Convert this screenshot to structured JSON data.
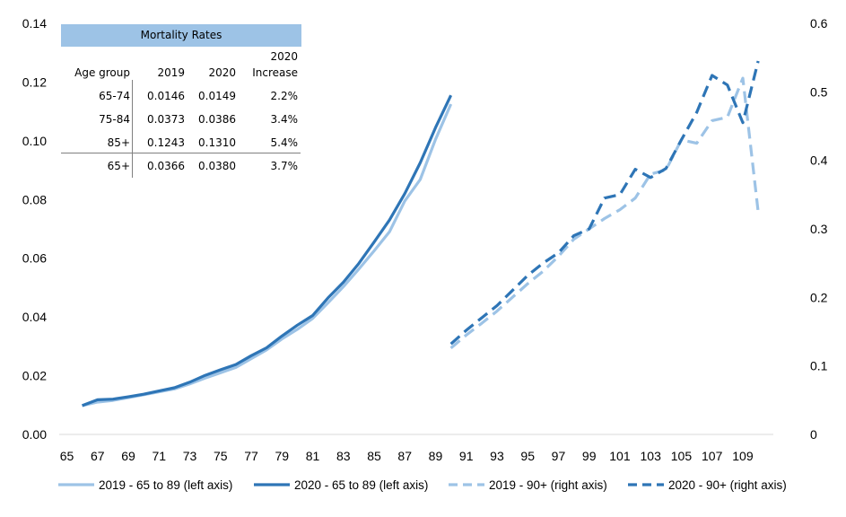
{
  "chart_data": {
    "type": "line",
    "x_ticks": [
      65,
      67,
      69,
      71,
      73,
      75,
      77,
      79,
      81,
      83,
      85,
      87,
      89,
      91,
      93,
      95,
      97,
      99,
      101,
      103,
      105,
      107,
      109
    ],
    "xlim": [
      65,
      111
    ],
    "y_left": {
      "ylim": [
        0,
        0.14
      ],
      "ticks": [
        "0.00",
        "0.02",
        "0.04",
        "0.06",
        "0.08",
        "0.10",
        "0.12",
        "0.14"
      ]
    },
    "y_right": {
      "ylim": [
        0,
        0.6
      ],
      "ticks": [
        "0",
        "0.1",
        "0.2",
        "0.3",
        "0.4",
        "0.5",
        "0.6"
      ]
    },
    "series": [
      {
        "name": "2019 - 65 to 89 (left axis)",
        "axis": "left",
        "color": "#9dc3e6",
        "dash": false,
        "x": [
          66,
          67,
          68,
          69,
          70,
          71,
          72,
          73,
          74,
          75,
          76,
          77,
          78,
          79,
          80,
          81,
          82,
          83,
          84,
          85,
          86,
          87,
          88,
          89,
          90
        ],
        "y": [
          0.0098,
          0.011,
          0.0116,
          0.0125,
          0.0135,
          0.0145,
          0.0155,
          0.0172,
          0.0192,
          0.021,
          0.0228,
          0.0258,
          0.0288,
          0.0325,
          0.0358,
          0.0395,
          0.0448,
          0.0503,
          0.0563,
          0.0625,
          0.069,
          0.0795,
          0.0868,
          0.1005,
          0.1125
        ]
      },
      {
        "name": "2020 - 65 to 89 (left axis)",
        "axis": "left",
        "color": "#2e75b6",
        "dash": false,
        "x": [
          66,
          67,
          68,
          69,
          70,
          71,
          72,
          73,
          74,
          75,
          76,
          77,
          78,
          79,
          80,
          81,
          82,
          83,
          84,
          85,
          86,
          87,
          88,
          89,
          90
        ],
        "y": [
          0.0098,
          0.0118,
          0.012,
          0.0128,
          0.0137,
          0.0148,
          0.0159,
          0.0178,
          0.0201,
          0.022,
          0.0238,
          0.0268,
          0.0295,
          0.0335,
          0.0372,
          0.0405,
          0.0465,
          0.0518,
          0.0582,
          0.0655,
          0.073,
          0.082,
          0.0925,
          0.1045,
          0.1155
        ]
      },
      {
        "name": "2019 - 90+ (right axis)",
        "axis": "right",
        "color": "#9dc3e6",
        "dash": true,
        "x": [
          90,
          91,
          92,
          93,
          94,
          95,
          96,
          97,
          98,
          99,
          100,
          101,
          102,
          103,
          104,
          105,
          106,
          107,
          108,
          109,
          110
        ],
        "y": [
          0.126,
          0.145,
          0.162,
          0.18,
          0.2,
          0.22,
          0.238,
          0.26,
          0.285,
          0.3,
          0.315,
          0.328,
          0.345,
          0.38,
          0.386,
          0.43,
          0.425,
          0.458,
          0.463,
          0.52,
          0.325
        ]
      },
      {
        "name": "2020 - 90+ (right axis)",
        "axis": "right",
        "color": "#2e75b6",
        "dash": true,
        "x": [
          90,
          91,
          92,
          93,
          94,
          95,
          96,
          97,
          98,
          99,
          100,
          101,
          102,
          103,
          104,
          105,
          106,
          107,
          108,
          109,
          110
        ],
        "y": [
          0.132,
          0.152,
          0.17,
          0.188,
          0.21,
          0.232,
          0.25,
          0.265,
          0.29,
          0.3,
          0.345,
          0.35,
          0.387,
          0.375,
          0.388,
          0.43,
          0.47,
          0.524,
          0.51,
          0.455,
          0.545
        ]
      }
    ],
    "legend_position": "bottom",
    "grid": false,
    "table": {
      "title": "Mortality Rates",
      "headers": [
        "Age group",
        "2019",
        "2020",
        "2020 Increase"
      ],
      "header_increase_line1": "2020",
      "header_increase_line2": "Increase",
      "rows": [
        [
          "65-74",
          "0.0146",
          "0.0149",
          "2.2%"
        ],
        [
          "75-84",
          "0.0373",
          "0.0386",
          "3.4%"
        ],
        [
          "85+",
          "0.1243",
          "0.1310",
          "5.4%"
        ],
        [
          "65+",
          "0.0366",
          "0.0380",
          "3.7%"
        ]
      ]
    }
  }
}
